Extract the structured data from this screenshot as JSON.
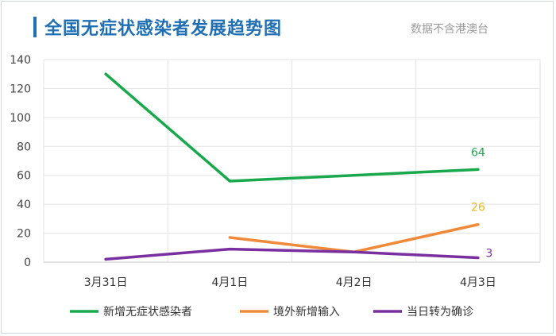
{
  "header": {
    "title": "全国无症状感染者发展趋势图",
    "note": "数据不含港澳台"
  },
  "chart_data": {
    "type": "line",
    "title": "全国无症状感染者发展趋势图",
    "categories": [
      "3月31日",
      "4月1日",
      "4月2日",
      "4月3日"
    ],
    "ylim": [
      0,
      140
    ],
    "yticks": [
      0,
      20,
      40,
      60,
      80,
      100,
      120,
      140
    ],
    "grid": true,
    "legend_position": "bottom",
    "series": [
      {
        "name": "新增无症状感染者",
        "color": "#1aa84c",
        "values": [
          130,
          56,
          null,
          64
        ],
        "end_label": "64"
      },
      {
        "name": "境外新增输入",
        "color": "#ee8a3a",
        "values": [
          null,
          17,
          7,
          26
        ],
        "end_label": "26"
      },
      {
        "name": "当日转为确诊",
        "color": "#7a2fa0",
        "values": [
          2,
          9,
          7,
          3
        ],
        "end_label": "3"
      }
    ],
    "end_label_colors": [
      "#1aa84c",
      "#e9b81e",
      "#7a2fa0"
    ]
  }
}
